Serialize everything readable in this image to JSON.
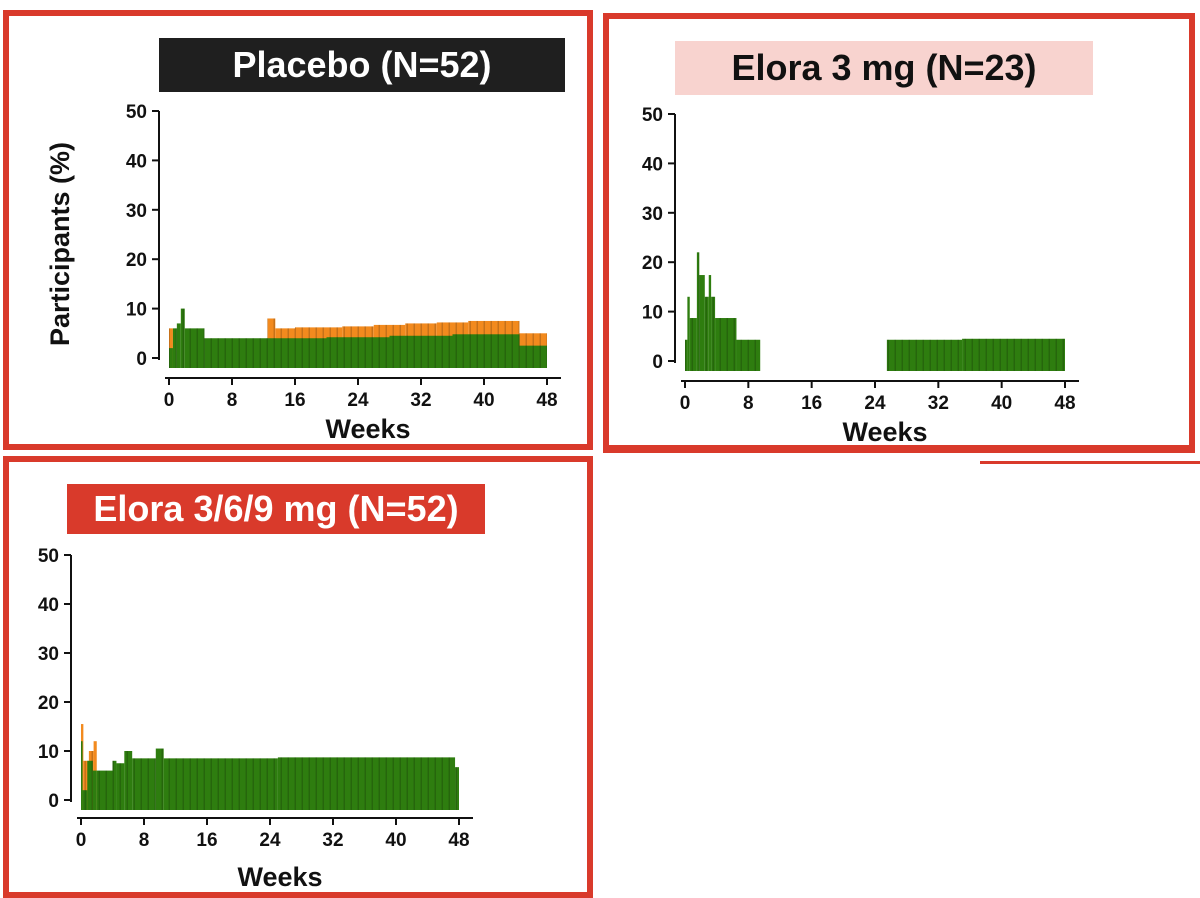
{
  "colors": {
    "frame": "#d93a2b",
    "bar_primary": "#2e7d0f",
    "bar_secondary": "#f28a1e",
    "title_placebo_bg": "#1f1f1f",
    "title_3mg_bg": "#f8d3cf",
    "title_369_bg": "#d93a2b"
  },
  "chart_data": [
    {
      "type": "bar",
      "title": "Placebo (N=52)",
      "xlabel": "Weeks",
      "ylabel": "Participants (%)",
      "xlim": [
        0,
        48
      ],
      "ylim": [
        0,
        50
      ],
      "xticks": [
        "0",
        "8",
        "16",
        "24",
        "32",
        "40",
        "48"
      ],
      "yticks": [
        "0",
        "10",
        "20",
        "30",
        "40",
        "50"
      ],
      "series": [
        {
          "name": "green",
          "color": "#2e7d0f",
          "segments": [
            [
              0,
              0.5,
              2
            ],
            [
              0.5,
              1,
              6
            ],
            [
              1,
              1.5,
              7
            ],
            [
              1.5,
              2,
              10
            ],
            [
              2,
              4.5,
              6
            ],
            [
              4.5,
              12,
              4
            ],
            [
              12,
              20,
              4
            ],
            [
              20,
              28,
              4.2
            ],
            [
              28,
              36,
              4.5
            ],
            [
              36,
              44.5,
              4.8
            ],
            [
              44.5,
              48,
              2.5
            ]
          ]
        },
        {
          "name": "orange",
          "color": "#f28a1e",
          "segments": [
            [
              0,
              0.5,
              6
            ],
            [
              12.5,
              13.5,
              8
            ],
            [
              13.5,
              16,
              6
            ],
            [
              16,
              22,
              6.2
            ],
            [
              22,
              26,
              6.4
            ],
            [
              26,
              30,
              6.7
            ],
            [
              30,
              34,
              7
            ],
            [
              34,
              38,
              7.2
            ],
            [
              38,
              44.5,
              7.5
            ],
            [
              44.5,
              48,
              5
            ]
          ]
        }
      ]
    },
    {
      "type": "bar",
      "title": "Elora 3 mg (N=23)",
      "xlabel": "Weeks",
      "ylabel": "",
      "xlim": [
        0,
        48
      ],
      "ylim": [
        0,
        50
      ],
      "xticks": [
        "0",
        "8",
        "16",
        "24",
        "32",
        "40",
        "48"
      ],
      "yticks": [
        "0",
        "10",
        "20",
        "30",
        "40",
        "50"
      ],
      "series": [
        {
          "name": "green",
          "color": "#2e7d0f",
          "segments": [
            [
              0,
              0.3,
              4.3
            ],
            [
              0.3,
              0.6,
              13
            ],
            [
              0.6,
              1.5,
              8.7
            ],
            [
              1.5,
              1.8,
              22
            ],
            [
              1.8,
              2.5,
              17.4
            ],
            [
              2.5,
              3,
              13
            ],
            [
              3,
              3.3,
              17.4
            ],
            [
              3.3,
              3.8,
              13
            ],
            [
              3.8,
              6.5,
              8.7
            ],
            [
              6.5,
              9.5,
              4.3
            ],
            [
              25.5,
              35,
              4.3
            ],
            [
              35,
              48,
              4.5
            ]
          ]
        },
        {
          "name": "orange",
          "color": "#f28a1e",
          "segments": []
        }
      ]
    },
    {
      "type": "bar",
      "title": "Elora 3/6/9 mg (N=52)",
      "xlabel": "Weeks",
      "ylabel": "",
      "xlim": [
        0,
        48
      ],
      "ylim": [
        0,
        50
      ],
      "xticks": [
        "0",
        "8",
        "16",
        "24",
        "32",
        "40",
        "48"
      ],
      "yticks": [
        "0",
        "10",
        "20",
        "30",
        "40",
        "50"
      ],
      "series": [
        {
          "name": "green",
          "color": "#2e7d0f",
          "segments": [
            [
              0,
              0.2,
              12
            ],
            [
              0.2,
              0.8,
              2
            ],
            [
              0.8,
              1.5,
              8
            ],
            [
              1.5,
              2,
              6
            ],
            [
              2,
              4,
              6
            ],
            [
              4,
              4.5,
              8
            ],
            [
              4.5,
              5.5,
              7.5
            ],
            [
              5.5,
              6.5,
              10
            ],
            [
              6.5,
              9.5,
              8.5
            ],
            [
              9.5,
              10.5,
              10.5
            ],
            [
              10.5,
              25,
              8.5
            ],
            [
              25,
              47.5,
              8.7
            ],
            [
              47.5,
              48,
              6.7
            ]
          ]
        },
        {
          "name": "orange",
          "color": "#f28a1e",
          "segments": [
            [
              0,
              0.3,
              15.5
            ],
            [
              0.3,
              1,
              8
            ],
            [
              1,
              1.6,
              10
            ],
            [
              1.6,
              2,
              12
            ]
          ]
        }
      ]
    }
  ]
}
